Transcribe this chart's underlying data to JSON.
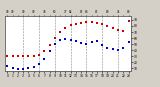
{
  "hours": [
    0,
    1,
    2,
    3,
    4,
    5,
    6,
    7,
    8,
    9,
    10,
    11,
    12,
    13,
    14,
    15,
    16,
    17,
    18,
    19,
    20,
    21,
    22,
    23
  ],
  "temp_red": [
    30,
    30,
    30,
    30,
    30,
    30,
    32,
    38,
    48,
    60,
    70,
    77,
    82,
    84,
    85,
    86,
    86,
    85,
    83,
    80,
    77,
    74,
    72,
    88
  ],
  "thsw_blue": [
    14,
    11,
    9,
    9,
    10,
    12,
    17,
    26,
    38,
    50,
    56,
    59,
    57,
    55,
    52,
    50,
    54,
    55,
    48,
    44,
    42,
    40,
    44,
    54
  ],
  "top_labels": [
    "30",
    "30",
    "",
    "30",
    "",
    "30",
    "",
    "38",
    "",
    "60",
    "",
    "77",
    "82",
    "",
    "85",
    "86",
    "",
    "85",
    "",
    "80",
    "",
    "74",
    "",
    "88"
  ],
  "ylim": [
    5,
    97
  ],
  "yticks": [
    10,
    20,
    30,
    40,
    50,
    60,
    70,
    80,
    90
  ],
  "bg_color": "#d4d0c8",
  "plot_bg": "#ffffff",
  "red_color": "#cc0000",
  "blue_color": "#0000cc",
  "marker_size": 1.8,
  "grid_color": "#888888",
  "grid_hours": [
    3,
    6,
    9,
    12,
    15,
    18,
    21
  ]
}
